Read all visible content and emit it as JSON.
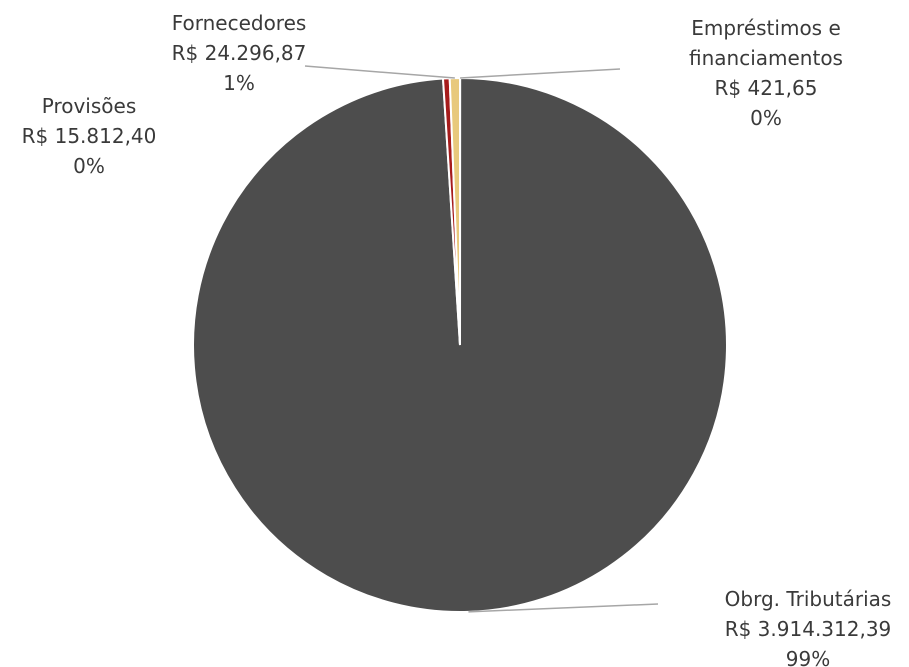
{
  "chart_data": {
    "type": "pie",
    "title": "",
    "start_angle_deg": 0,
    "slices": [
      {
        "name": "Empréstimos e financiamentos",
        "name_lines": [
          "Empréstimos e",
          "financiamentos"
        ],
        "value": 421.65,
        "value_label": "R$ 421,65",
        "percent_label": "0%",
        "color": "#b7b7b7"
      },
      {
        "name": "Obrg. Tributárias",
        "name_lines": [
          "Obrg. Tributárias"
        ],
        "value": 3914312.39,
        "value_label": "R$ 3.914.312,39",
        "percent_label": "99%",
        "color": "#4d4d4d"
      },
      {
        "name": "Provisões",
        "name_lines": [
          "Provisões"
        ],
        "value": 15812.4,
        "value_label": "R$ 15.812,40",
        "percent_label": "0%",
        "color": "#a61c1c"
      },
      {
        "name": "Fornecedores",
        "name_lines": [
          "Fornecedores"
        ],
        "value": 24296.87,
        "value_label": "R$ 24.296,87",
        "percent_label": "1%",
        "color": "#e8c97c"
      }
    ],
    "legend": "none"
  }
}
